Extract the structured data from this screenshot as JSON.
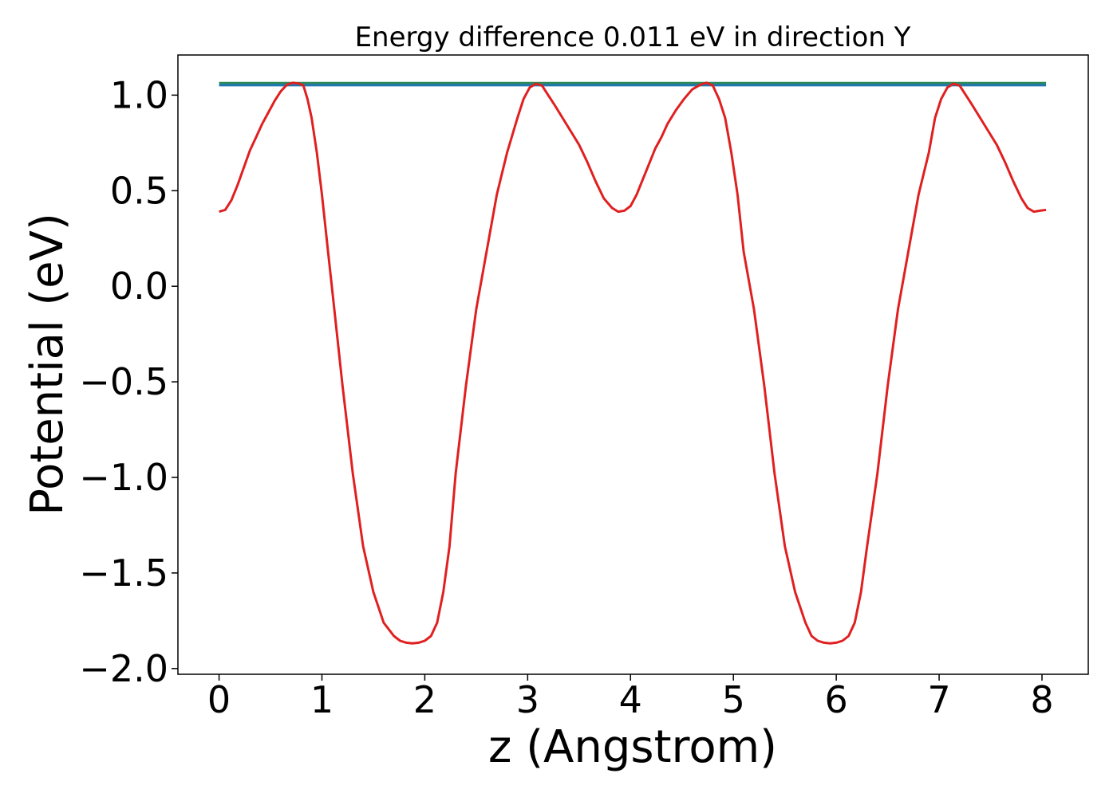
{
  "chart_data": {
    "type": "line",
    "title": "Energy difference 0.011 eV in direction Y",
    "xlabel": "z (Angstrom)",
    "ylabel": "Potential (eV)",
    "xlim": [
      -0.4,
      8.45
    ],
    "ylim": [
      -2.03,
      1.21
    ],
    "x_ticks": [
      0,
      1,
      2,
      3,
      4,
      5,
      6,
      7,
      8
    ],
    "x_tick_labels": [
      "0",
      "1",
      "2",
      "3",
      "4",
      "5",
      "6",
      "7",
      "8"
    ],
    "y_ticks": [
      1.0,
      0.5,
      0.0,
      -0.5,
      -1.0,
      -1.5,
      -2.0
    ],
    "y_tick_labels": [
      "1.0",
      "0.5",
      "0.0",
      "−0.5",
      "−1.0",
      "−1.5",
      "−2.0"
    ],
    "grid": false,
    "series": [
      {
        "color": "#2e8b57",
        "x": [
          0,
          8.04
        ],
        "y": [
          1.063,
          1.063
        ]
      },
      {
        "color": "#1f77b4",
        "x": [
          0,
          8.04
        ],
        "y": [
          1.052,
          1.052
        ]
      },
      {
        "color": "#e02020",
        "x": [
          0.0,
          0.06,
          0.12,
          0.18,
          0.24,
          0.3,
          0.36,
          0.42,
          0.48,
          0.54,
          0.6,
          0.66,
          0.72,
          0.78,
          0.82,
          0.86,
          0.9,
          0.95,
          1.0,
          1.06,
          1.12,
          1.2,
          1.3,
          1.4,
          1.5,
          1.6,
          1.7,
          1.76,
          1.82,
          1.88,
          1.94,
          2.0,
          2.06,
          2.12,
          2.18,
          2.24,
          2.3,
          2.4,
          2.5,
          2.6,
          2.7,
          2.8,
          2.9,
          2.96,
          3.02,
          3.08,
          3.14,
          3.2,
          3.26,
          3.34,
          3.42,
          3.5,
          3.58,
          3.66,
          3.74,
          3.82,
          3.88,
          3.94,
          4.0,
          4.06,
          4.12,
          4.18,
          4.24,
          4.3,
          4.36,
          4.44,
          4.52,
          4.6,
          4.68,
          4.74,
          4.8,
          4.86,
          4.92,
          4.98,
          5.04,
          5.1,
          5.2,
          5.3,
          5.4,
          5.5,
          5.6,
          5.7,
          5.76,
          5.82,
          5.88,
          5.94,
          6.0,
          6.06,
          6.12,
          6.18,
          6.24,
          6.3,
          6.4,
          6.5,
          6.6,
          6.7,
          6.8,
          6.9,
          6.96,
          7.02,
          7.08,
          7.14,
          7.2,
          7.26,
          7.32,
          7.4,
          7.48,
          7.56,
          7.64,
          7.72,
          7.8,
          7.86,
          7.92,
          7.98,
          8.04
        ],
        "y": [
          0.39,
          0.4,
          0.45,
          0.53,
          0.62,
          0.71,
          0.78,
          0.85,
          0.91,
          0.97,
          1.02,
          1.055,
          1.065,
          1.06,
          1.05,
          0.98,
          0.88,
          0.7,
          0.48,
          0.18,
          -0.12,
          -0.52,
          -0.98,
          -1.36,
          -1.6,
          -1.76,
          -1.83,
          -1.855,
          -1.865,
          -1.868,
          -1.865,
          -1.855,
          -1.83,
          -1.76,
          -1.6,
          -1.36,
          -0.98,
          -0.52,
          -0.12,
          0.18,
          0.48,
          0.7,
          0.88,
          0.98,
          1.04,
          1.06,
          1.05,
          1.0,
          0.95,
          0.88,
          0.81,
          0.74,
          0.65,
          0.55,
          0.46,
          0.41,
          0.39,
          0.395,
          0.42,
          0.48,
          0.56,
          0.64,
          0.72,
          0.78,
          0.85,
          0.92,
          0.98,
          1.03,
          1.055,
          1.065,
          1.05,
          0.98,
          0.88,
          0.7,
          0.48,
          0.18,
          -0.12,
          -0.52,
          -0.98,
          -1.36,
          -1.6,
          -1.76,
          -1.83,
          -1.855,
          -1.865,
          -1.868,
          -1.865,
          -1.855,
          -1.83,
          -1.76,
          -1.6,
          -1.36,
          -0.98,
          -0.52,
          -0.12,
          0.18,
          0.48,
          0.7,
          0.88,
          0.98,
          1.04,
          1.06,
          1.05,
          1.0,
          0.95,
          0.88,
          0.81,
          0.74,
          0.65,
          0.55,
          0.46,
          0.41,
          0.39,
          0.395,
          0.4
        ]
      }
    ]
  }
}
